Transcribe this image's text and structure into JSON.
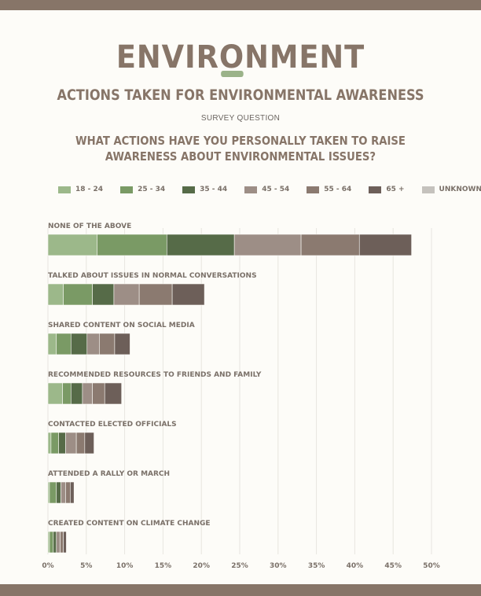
{
  "header": {
    "brand": "ENVIRONMENT",
    "subtitle": "ACTIONS TAKEN FOR ENVIRONMENTAL AWARENESS",
    "survey_label": "SURVEY QUESTION",
    "question_line1": "WHAT ACTIONS HAVE YOU PERSONALLY TAKEN TO RAISE",
    "question_line2": "AWARENESS ABOUT ENVIRONMENTAL ISSUES?"
  },
  "colors": {
    "top_bar": "#877568",
    "brand": "#877568",
    "accent": "#9bb389"
  },
  "chart_data": {
    "type": "bar",
    "orientation": "horizontal",
    "stacked": true,
    "categories": [
      "NONE OF THE ABOVE",
      "TALKED ABOUT ISSUES IN NORMAL CONVERSATIONS",
      "SHARED CONTENT ON SOCIAL MEDIA",
      "RECOMMENDED RESOURCES TO FRIENDS AND FAMILY",
      "CONTACTED ELECTED OFFICIALS",
      "ATTENDED A RALLY OR MARCH",
      "CREATED CONTENT ON CLIMATE CHANGE"
    ],
    "series": [
      {
        "name": "18 - 24",
        "color": "#9cb88a",
        "values": [
          6.4,
          2.0,
          1.1,
          1.9,
          0.4,
          0.2,
          0.2
        ]
      },
      {
        "name": "25 - 34",
        "color": "#7a9a65",
        "values": [
          9.1,
          3.8,
          1.9,
          1.1,
          1.0,
          0.9,
          0.5
        ]
      },
      {
        "name": "35 - 44",
        "color": "#566b48",
        "values": [
          8.8,
          2.8,
          2.1,
          1.5,
          0.9,
          0.6,
          0.4
        ]
      },
      {
        "name": "45 - 54",
        "color": "#9d8e86",
        "values": [
          8.7,
          3.3,
          1.6,
          1.3,
          1.4,
          0.6,
          0.5
        ]
      },
      {
        "name": "55 - 64",
        "color": "#8b7a70",
        "values": [
          7.6,
          4.3,
          2.0,
          1.6,
          1.1,
          0.6,
          0.4
        ]
      },
      {
        "name": "65 +",
        "color": "#6d5f59",
        "values": [
          6.8,
          4.2,
          2.0,
          2.2,
          1.2,
          0.5,
          0.4
        ]
      },
      {
        "name": "UNKNOWN",
        "color": "#c5c2bd",
        "values": [
          0,
          0,
          0,
          0,
          0,
          0,
          0
        ]
      }
    ],
    "xlim": [
      0,
      50
    ],
    "xticks": [
      "0%",
      "5%",
      "10%",
      "15%",
      "20%",
      "25%",
      "30%",
      "35%",
      "40%",
      "45%",
      "50%"
    ],
    "grid": true,
    "legend": "top"
  }
}
